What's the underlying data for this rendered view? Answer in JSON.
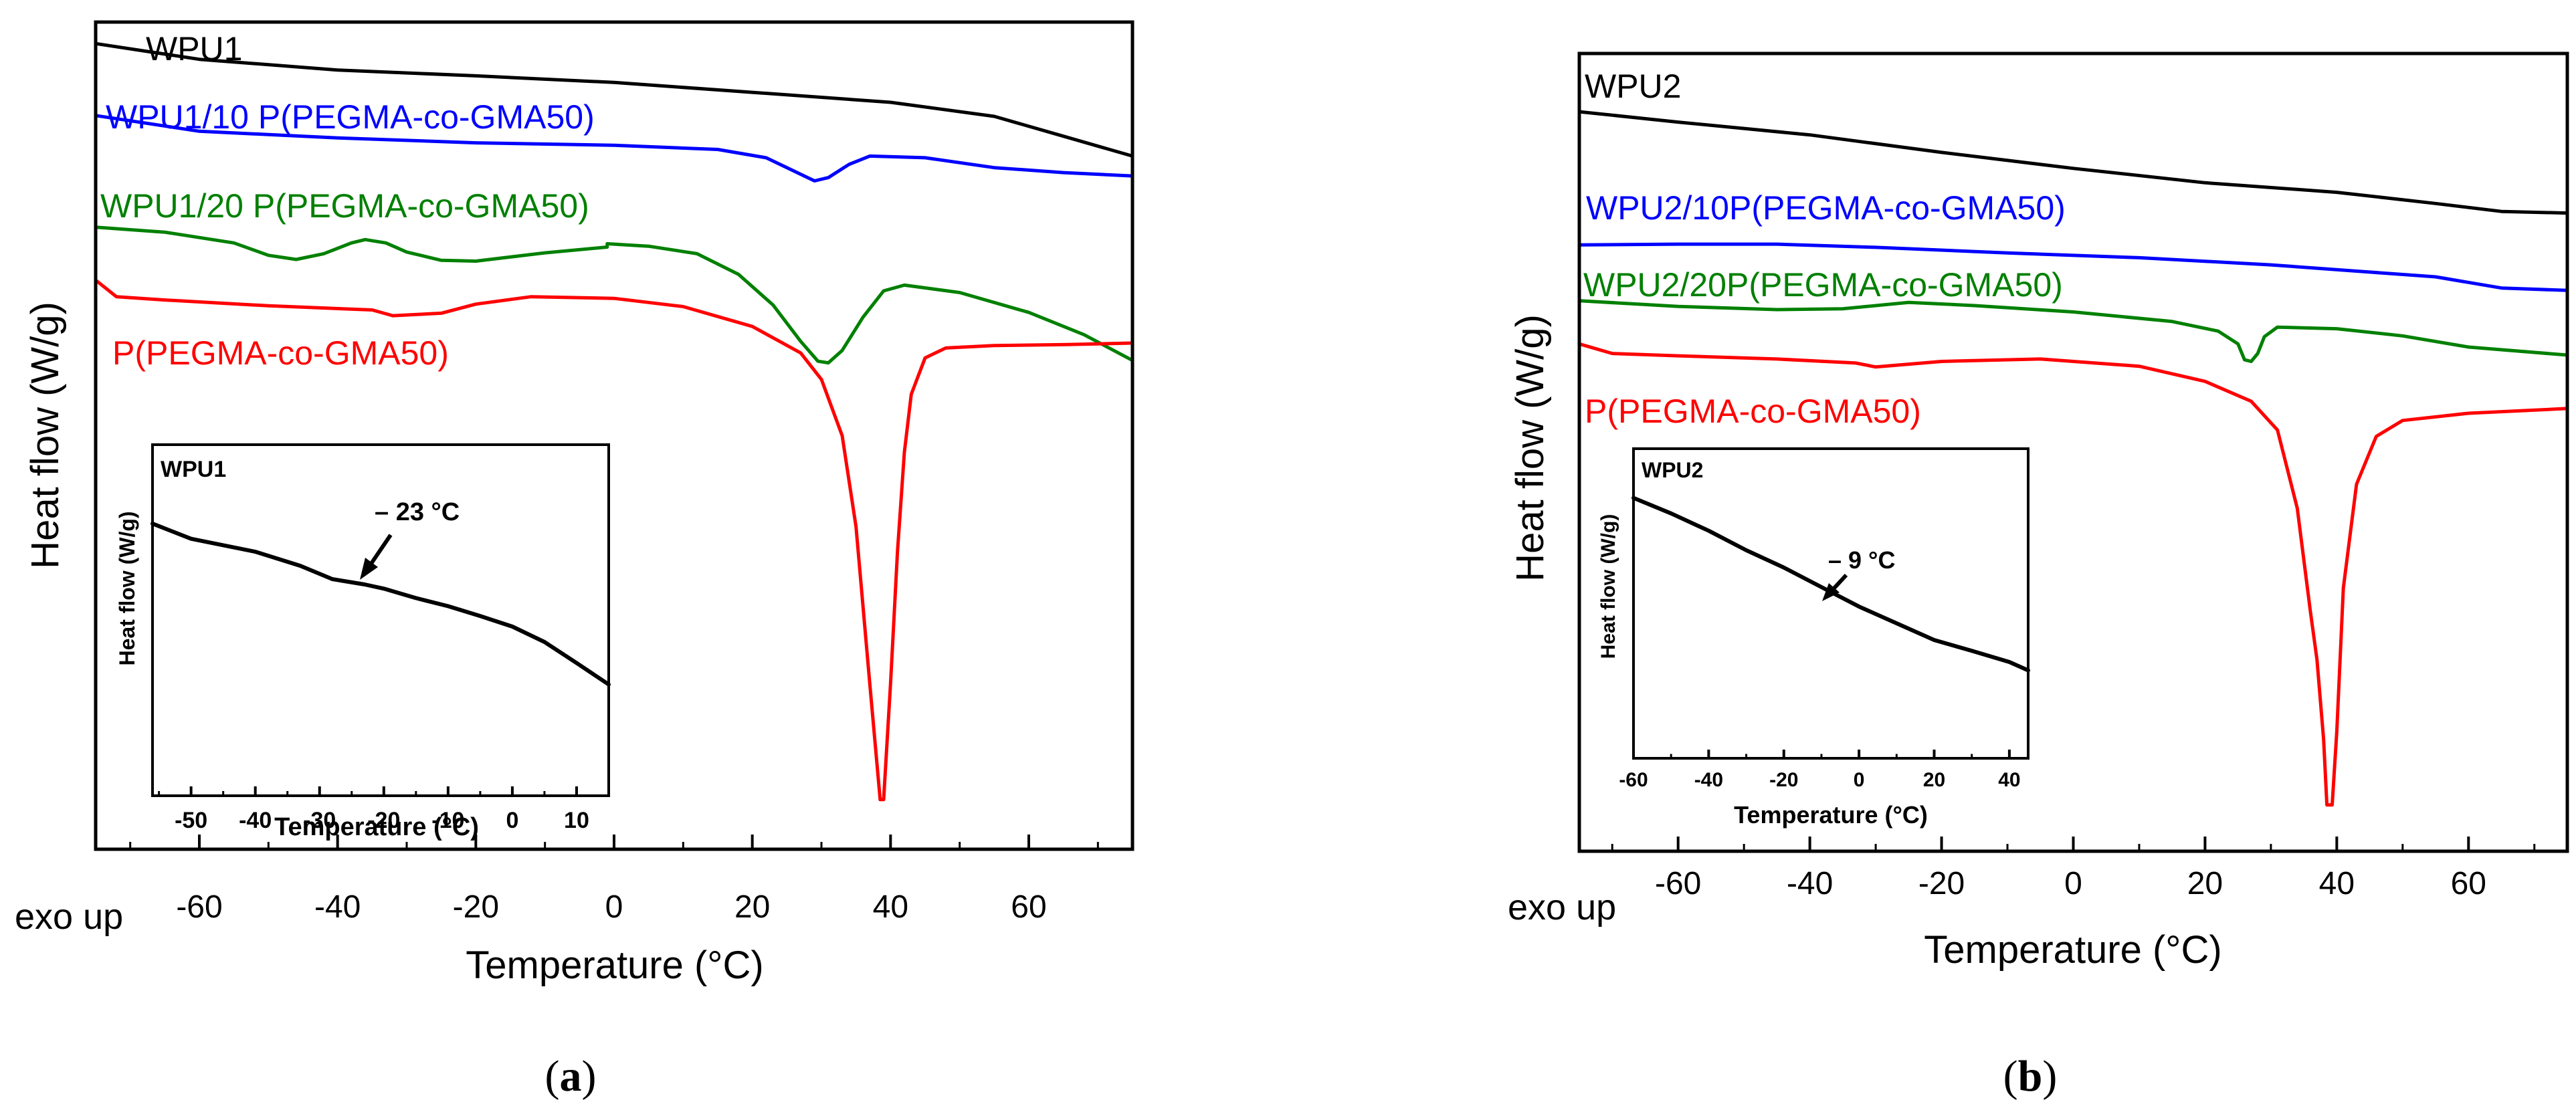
{
  "panels": [
    {
      "label_open": "(",
      "label_letter": "a",
      "label_close": ")",
      "chart_data": {
        "type": "line",
        "xlabel": "Temperature (°C)",
        "ylabel": "Heat flow (W/g)",
        "corner_label": "exo up",
        "xlim": [
          -75,
          75
        ],
        "ylim": [
          0,
          1
        ],
        "xticks": [
          "-60",
          "-40",
          "-20",
          "0",
          "20",
          "40",
          "60"
        ],
        "grid": false,
        "legend": "inline labels above each curve",
        "series": [
          {
            "name": "WPU1",
            "color": "#000000",
            "points": [
              [
                -75,
                0.974
              ],
              [
                -60,
                0.955
              ],
              [
                -40,
                0.942
              ],
              [
                -20,
                0.935
              ],
              [
                0,
                0.927
              ],
              [
                20,
                0.915
              ],
              [
                40,
                0.903
              ],
              [
                55,
                0.886
              ],
              [
                65,
                0.862
              ],
              [
                75,
                0.838
              ]
            ]
          },
          {
            "name": "WPU1/10 P(PEGMA-co-GMA50)",
            "color": "#0000ff",
            "points": [
              [
                -75,
                0.887
              ],
              [
                -60,
                0.868
              ],
              [
                -40,
                0.86
              ],
              [
                -20,
                0.854
              ],
              [
                0,
                0.851
              ],
              [
                15,
                0.846
              ],
              [
                22,
                0.836
              ],
              [
                27,
                0.816
              ],
              [
                29,
                0.808
              ],
              [
                31,
                0.812
              ],
              [
                34,
                0.828
              ],
              [
                37,
                0.838
              ],
              [
                45,
                0.836
              ],
              [
                55,
                0.824
              ],
              [
                65,
                0.818
              ],
              [
                75,
                0.814
              ]
            ]
          },
          {
            "name": "WPU1/20 P(PEGMA-co-GMA50)",
            "color": "#008000",
            "points": [
              [
                -75,
                0.752
              ],
              [
                -65,
                0.746
              ],
              [
                -55,
                0.733
              ],
              [
                -50,
                0.718
              ],
              [
                -46,
                0.713
              ],
              [
                -42,
                0.72
              ],
              [
                -38,
                0.733
              ],
              [
                -36,
                0.737
              ],
              [
                -33,
                0.733
              ],
              [
                -30,
                0.722
              ],
              [
                -25,
                0.712
              ],
              [
                -20,
                0.711
              ],
              [
                -10,
                0.721
              ],
              [
                -1,
                0.728
              ],
              [
                -1,
                0.732
              ],
              [
                5,
                0.729
              ],
              [
                12,
                0.72
              ],
              [
                18,
                0.695
              ],
              [
                23,
                0.658
              ],
              [
                27,
                0.614
              ],
              [
                29.5,
                0.59
              ],
              [
                31,
                0.588
              ],
              [
                33,
                0.603
              ],
              [
                36,
                0.643
              ],
              [
                39,
                0.675
              ],
              [
                42,
                0.682
              ],
              [
                50,
                0.673
              ],
              [
                60,
                0.649
              ],
              [
                68,
                0.622
              ],
              [
                75,
                0.591
              ]
            ]
          },
          {
            "name": "P(PEGMA-co-GMA50)",
            "color": "#ff0000",
            "points": [
              [
                -75,
                0.688
              ],
              [
                -72,
                0.668
              ],
              [
                -65,
                0.664
              ],
              [
                -50,
                0.657
              ],
              [
                -35,
                0.652
              ],
              [
                -32,
                0.645
              ],
              [
                -25,
                0.648
              ],
              [
                -20,
                0.659
              ],
              [
                -12,
                0.668
              ],
              [
                0,
                0.666
              ],
              [
                10,
                0.656
              ],
              [
                20,
                0.632
              ],
              [
                27,
                0.6
              ],
              [
                30,
                0.568
              ],
              [
                33,
                0.5
              ],
              [
                35,
                0.39
              ],
              [
                37,
                0.2
              ],
              [
                38.5,
                0.06
              ],
              [
                39,
                0.06
              ],
              [
                40,
                0.2
              ],
              [
                41,
                0.36
              ],
              [
                42,
                0.48
              ],
              [
                43,
                0.55
              ],
              [
                45,
                0.594
              ],
              [
                48,
                0.606
              ],
              [
                55,
                0.609
              ],
              [
                65,
                0.61
              ],
              [
                75,
                0.612
              ]
            ]
          }
        ],
        "inset": {
          "title": "WPU1",
          "xlabel": "Temperature (°C)",
          "ylabel": "Heat flow (W/g)",
          "xlim": [
            -56,
            15
          ],
          "ylim": [
            0,
            1
          ],
          "xticks": [
            "-50",
            "-40",
            "-30",
            "-20",
            "-10",
            "0",
            "10"
          ],
          "annotation": "– 23 °C",
          "annotation_at": [
            -23,
            0.62
          ],
          "series": [
            {
              "name": "WPU1",
              "color": "#000000",
              "points": [
                [
                  -56,
                  0.775
                ],
                [
                  -50,
                  0.732
                ],
                [
                  -40,
                  0.695
                ],
                [
                  -33,
                  0.655
                ],
                [
                  -28,
                  0.617
                ],
                [
                  -23,
                  0.602
                ],
                [
                  -20,
                  0.59
                ],
                [
                  -15,
                  0.563
                ],
                [
                  -10,
                  0.54
                ],
                [
                  -5,
                  0.512
                ],
                [
                  0,
                  0.482
                ],
                [
                  5,
                  0.438
                ],
                [
                  10,
                  0.378
                ],
                [
                  15,
                  0.317
                ]
              ]
            }
          ]
        }
      }
    },
    {
      "label_open": "(",
      "label_letter": "b",
      "label_close": ")",
      "chart_data": {
        "type": "line",
        "xlabel": "Temperature (°C)",
        "ylabel": "Heat flow (W/g)",
        "corner_label": "exo up",
        "xlim": [
          -75,
          75
        ],
        "ylim": [
          0,
          1
        ],
        "xticks": [
          "-60",
          "-40",
          "-20",
          "0",
          "20",
          "40",
          "60"
        ],
        "grid": false,
        "legend": "inline labels above each curve",
        "series": [
          {
            "name": "WPU2",
            "color": "#000000",
            "points": [
              [
                -75,
                0.927
              ],
              [
                -60,
                0.914
              ],
              [
                -40,
                0.898
              ],
              [
                -20,
                0.876
              ],
              [
                0,
                0.856
              ],
              [
                20,
                0.838
              ],
              [
                40,
                0.826
              ],
              [
                55,
                0.812
              ],
              [
                65,
                0.802
              ],
              [
                75,
                0.8
              ]
            ]
          },
          {
            "name": "WPU2/10P(PEGMA-co-GMA50)",
            "color": "#0000ff",
            "points": [
              [
                -75,
                0.76
              ],
              [
                -60,
                0.761
              ],
              [
                -45,
                0.761
              ],
              [
                -30,
                0.757
              ],
              [
                -10,
                0.75
              ],
              [
                10,
                0.744
              ],
              [
                30,
                0.735
              ],
              [
                45,
                0.726
              ],
              [
                55,
                0.72
              ],
              [
                65,
                0.706
              ],
              [
                75,
                0.703
              ]
            ]
          },
          {
            "name": "WPU2/20P(PEGMA-co-GMA50)",
            "color": "#008000",
            "points": [
              [
                -75,
                0.69
              ],
              [
                -60,
                0.683
              ],
              [
                -45,
                0.679
              ],
              [
                -35,
                0.68
              ],
              [
                -25,
                0.688
              ],
              [
                -15,
                0.684
              ],
              [
                0,
                0.676
              ],
              [
                15,
                0.664
              ],
              [
                22,
                0.652
              ],
              [
                25,
                0.636
              ],
              [
                26,
                0.616
              ],
              [
                27,
                0.614
              ],
              [
                28,
                0.624
              ],
              [
                29,
                0.645
              ],
              [
                31,
                0.657
              ],
              [
                40,
                0.655
              ],
              [
                50,
                0.646
              ],
              [
                60,
                0.632
              ],
              [
                75,
                0.622
              ]
            ]
          },
          {
            "name": "P(PEGMA-co-GMA50)",
            "color": "#ff0000",
            "points": [
              [
                -75,
                0.636
              ],
              [
                -70,
                0.624
              ],
              [
                -60,
                0.621
              ],
              [
                -45,
                0.617
              ],
              [
                -33,
                0.612
              ],
              [
                -30,
                0.607
              ],
              [
                -20,
                0.614
              ],
              [
                -5,
                0.617
              ],
              [
                10,
                0.608
              ],
              [
                20,
                0.589
              ],
              [
                27,
                0.564
              ],
              [
                31,
                0.528
              ],
              [
                34,
                0.43
              ],
              [
                36,
                0.3
              ],
              [
                37,
                0.24
              ],
              [
                38,
                0.14
              ],
              [
                38.5,
                0.058
              ],
              [
                39.3,
                0.058
              ],
              [
                40,
                0.15
              ],
              [
                41,
                0.33
              ],
              [
                43,
                0.46
              ],
              [
                46,
                0.52
              ],
              [
                50,
                0.54
              ],
              [
                60,
                0.549
              ],
              [
                75,
                0.555
              ]
            ]
          }
        ],
        "inset": {
          "title": "WPU2",
          "xlabel": "Temperature (°C)",
          "ylabel": "Heat flow (W/g)",
          "xlim": [
            -60,
            45
          ],
          "ylim": [
            0,
            1
          ],
          "xticks": [
            "-60",
            "-40",
            "-20",
            "0",
            "20",
            "40"
          ],
          "annotation": "– 9 °C",
          "annotation_at": [
            -9,
            0.56
          ],
          "series": [
            {
              "name": "WPU2",
              "color": "#000000",
              "points": [
                [
                  -60,
                  0.841
                ],
                [
                  -50,
                  0.791
                ],
                [
                  -40,
                  0.735
                ],
                [
                  -30,
                  0.672
                ],
                [
                  -20,
                  0.616
                ],
                [
                  -10,
                  0.553
                ],
                [
                  0,
                  0.49
                ],
                [
                  10,
                  0.436
                ],
                [
                  20,
                  0.382
                ],
                [
                  30,
                  0.347
                ],
                [
                  40,
                  0.311
                ],
                [
                  45,
                  0.284
                ]
              ]
            }
          ]
        }
      }
    }
  ]
}
